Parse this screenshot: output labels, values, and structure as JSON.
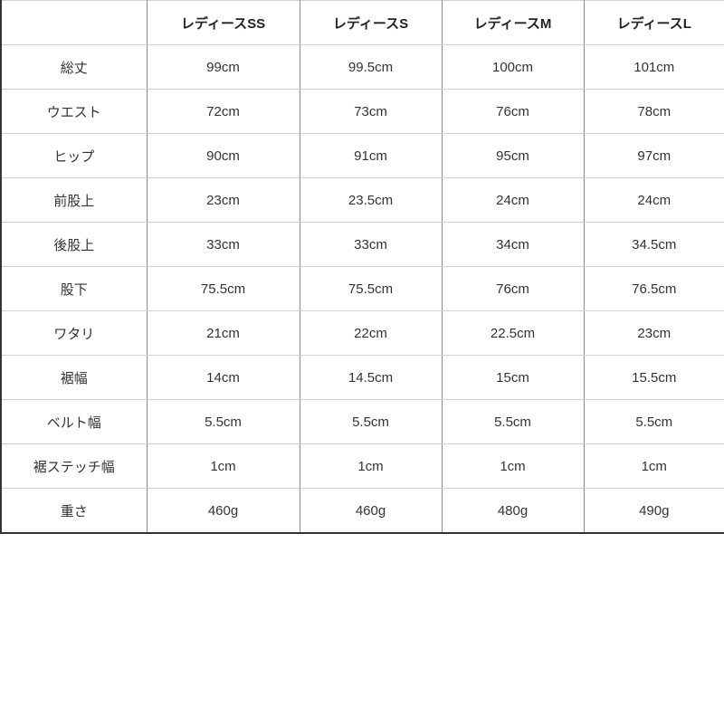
{
  "table": {
    "headers": [
      "",
      "レディースSS",
      "レディースS",
      "レディースM",
      "レディースL"
    ],
    "rows": [
      {
        "label": "総丈",
        "values": [
          "99cm",
          "99.5cm",
          "100cm",
          "101cm"
        ]
      },
      {
        "label": "ウエスト",
        "values": [
          "72cm",
          "73cm",
          "76cm",
          "78cm"
        ]
      },
      {
        "label": "ヒップ",
        "values": [
          "90cm",
          "91cm",
          "95cm",
          "97cm"
        ]
      },
      {
        "label": "前股上",
        "values": [
          "23cm",
          "23.5cm",
          "24cm",
          "24cm"
        ]
      },
      {
        "label": "後股上",
        "values": [
          "33cm",
          "33cm",
          "34cm",
          "34.5cm"
        ]
      },
      {
        "label": "股下",
        "values": [
          "75.5cm",
          "75.5cm",
          "76cm",
          "76.5cm"
        ]
      },
      {
        "label": "ワタリ",
        "values": [
          "21cm",
          "22cm",
          "22.5cm",
          "23cm"
        ]
      },
      {
        "label": "裾幅",
        "values": [
          "14cm",
          "14.5cm",
          "15cm",
          "15.5cm"
        ]
      },
      {
        "label": "ベルト幅",
        "values": [
          "5.5cm",
          "5.5cm",
          "5.5cm",
          "5.5cm"
        ]
      },
      {
        "label": "裾ステッチ幅",
        "values": [
          "1cm",
          "1cm",
          "1cm",
          "1cm"
        ]
      },
      {
        "label": "重さ",
        "values": [
          "460g",
          "460g",
          "480g",
          "490g"
        ]
      }
    ]
  }
}
